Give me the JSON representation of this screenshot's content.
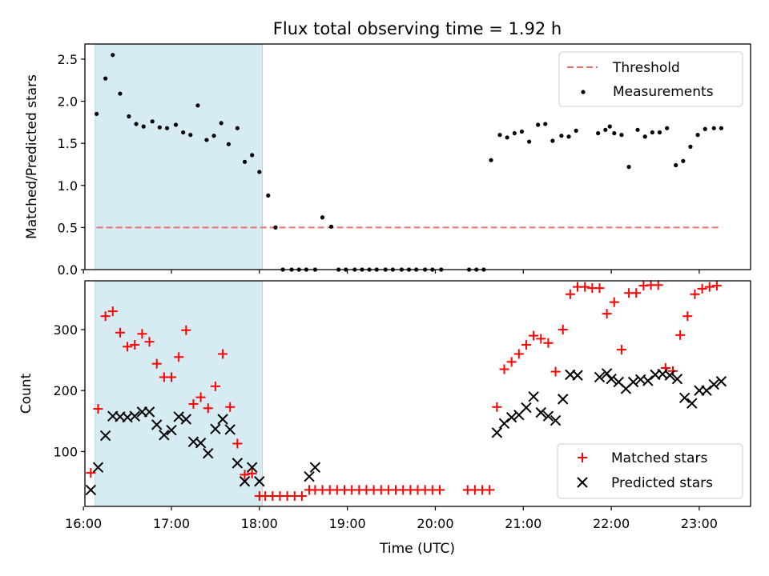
{
  "figure": {
    "title": "Flux total observing time = 1.92 h",
    "shaded_interval": [
      "16:08",
      "18:02"
    ],
    "shade_color": "#add8e6"
  },
  "chart_data": [
    {
      "type": "scatter",
      "ylabel": "Matched/Predicted stars",
      "ylim": [
        0,
        2.68
      ],
      "yticks": [
        "0.0",
        "0.5",
        "1.0",
        "1.5",
        "2.0",
        "2.5"
      ],
      "xlim": [
        "16:01",
        "23:35"
      ],
      "threshold": 0.5,
      "legend": {
        "position": "top-right",
        "threshold_label": "Threshold",
        "measurements_label": "Measurements"
      },
      "threshold_color": "#f07070",
      "measurement_color": "#000000",
      "series": [
        {
          "name": "Measurements",
          "x": [
            "16:09",
            "16:15",
            "16:20",
            "16:25",
            "16:31",
            "16:36",
            "16:41",
            "16:47",
            "16:52",
            "16:57",
            "17:03",
            "17:08",
            "17:13",
            "17:18",
            "17:24",
            "17:29",
            "17:34",
            "17:39",
            "17:45",
            "17:50",
            "17:55",
            "18:00",
            "18:06",
            "18:11",
            "18:16",
            "18:22",
            "18:27",
            "18:32",
            "18:38",
            "18:43",
            "18:49",
            "18:54",
            "18:59",
            "19:05",
            "19:10",
            "19:15",
            "19:20",
            "19:26",
            "19:31",
            "19:37",
            "19:42",
            "19:47",
            "19:53",
            "19:58",
            "20:04",
            "20:23",
            "20:28",
            "20:33",
            "20:38",
            "20:44",
            "20:49",
            "20:54",
            "20:59",
            "21:04",
            "21:10",
            "21:15",
            "21:20",
            "21:26",
            "21:31",
            "21:36",
            "21:51",
            "21:56",
            "21:59",
            "22:02",
            "22:07",
            "22:12",
            "22:18",
            "22:23",
            "22:28",
            "22:33",
            "22:38",
            "22:44",
            "22:49",
            "22:54",
            "22:59",
            "23:04",
            "23:10",
            "23:15"
          ],
          "y": [
            1.85,
            2.27,
            2.55,
            2.09,
            1.82,
            1.73,
            1.7,
            1.76,
            1.69,
            1.68,
            1.72,
            1.63,
            1.6,
            1.95,
            1.54,
            1.59,
            1.74,
            1.49,
            1.68,
            1.28,
            1.36,
            1.16,
            0.88,
            0.5,
            0,
            0,
            0,
            0,
            0,
            0.62,
            0.51,
            0,
            0,
            0,
            0,
            0,
            0,
            0,
            0,
            0,
            0,
            0,
            0,
            0,
            0,
            0,
            0,
            0,
            1.3,
            1.6,
            1.57,
            1.62,
            1.64,
            1.52,
            1.72,
            1.73,
            1.53,
            1.59,
            1.58,
            1.65,
            1.62,
            1.66,
            1.7,
            1.62,
            1.6,
            1.22,
            1.66,
            1.58,
            1.63,
            1.63,
            1.68,
            1.24,
            1.29,
            1.46,
            1.6,
            1.67,
            1.68,
            1.68
          ]
        }
      ]
    },
    {
      "type": "scatter",
      "ylabel": "Count",
      "xlabel": "Time (UTC)",
      "ylim": [
        10,
        380
      ],
      "yticks": [
        "100",
        "200",
        "300"
      ],
      "xticks": [
        "16:00",
        "17:00",
        "18:00",
        "19:00",
        "20:00",
        "21:00",
        "22:00",
        "23:00"
      ],
      "xlim": [
        "16:01",
        "23:35"
      ],
      "legend": {
        "position": "bottom-right"
      },
      "series": [
        {
          "name": "Matched stars",
          "color": "#ff0000",
          "marker": "+",
          "x": [
            "16:05",
            "16:10",
            "16:15",
            "16:20",
            "16:25",
            "16:30",
            "16:35",
            "16:40",
            "16:45",
            "16:50",
            "16:55",
            "17:00",
            "17:05",
            "17:10",
            "17:15",
            "17:20",
            "17:25",
            "17:30",
            "17:35",
            "17:40",
            "17:45",
            "17:50",
            "17:55",
            "18:00",
            "18:04",
            "18:09",
            "18:14",
            "18:19",
            "18:24",
            "18:29",
            "18:34",
            "18:38",
            "18:43",
            "18:48",
            "18:53",
            "18:58",
            "19:03",
            "19:08",
            "19:13",
            "19:18",
            "19:23",
            "19:28",
            "19:33",
            "19:38",
            "19:43",
            "19:48",
            "19:53",
            "19:58",
            "20:03",
            "20:22",
            "20:27",
            "20:32",
            "20:37",
            "20:42",
            "20:47",
            "20:52",
            "20:57",
            "21:02",
            "21:07",
            "21:12",
            "21:17",
            "21:22",
            "21:27",
            "21:32",
            "21:37",
            "21:42",
            "21:47",
            "21:52",
            "21:57",
            "22:02",
            "22:07",
            "22:12",
            "22:17",
            "22:22",
            "22:27",
            "22:32",
            "22:37",
            "22:42",
            "22:47",
            "22:52",
            "22:57",
            "23:02",
            "23:07",
            "23:12"
          ],
          "y": [
            65,
            170,
            322,
            330,
            295,
            272,
            275,
            293,
            280,
            244,
            222,
            222,
            255,
            299,
            178,
            189,
            171,
            207,
            260,
            173,
            113,
            62,
            64,
            27,
            27,
            27,
            27,
            27,
            27,
            27,
            37,
            37,
            37,
            37,
            37,
            37,
            37,
            37,
            37,
            37,
            37,
            37,
            37,
            37,
            37,
            37,
            37,
            37,
            37,
            37,
            37,
            37,
            37,
            173,
            235,
            247,
            260,
            275,
            290,
            285,
            278,
            231,
            300,
            358,
            370,
            370,
            368,
            368,
            326,
            345,
            267,
            360,
            360,
            372,
            373,
            373,
            237,
            232,
            291,
            322,
            358,
            367,
            370,
            372
          ]
        },
        {
          "name": "Predicted stars",
          "color": "#000000",
          "marker": "x",
          "x": [
            "16:05",
            "16:10",
            "16:15",
            "16:20",
            "16:25",
            "16:30",
            "16:35",
            "16:40",
            "16:45",
            "16:50",
            "16:55",
            "17:00",
            "17:05",
            "17:10",
            "17:15",
            "17:20",
            "17:25",
            "17:30",
            "17:35",
            "17:40",
            "17:45",
            "17:50",
            "17:55",
            "18:00",
            "18:34",
            "18:38",
            "20:42",
            "20:47",
            "20:52",
            "20:57",
            "21:02",
            "21:07",
            "21:12",
            "21:17",
            "21:22",
            "21:27",
            "21:32",
            "21:37",
            "21:52",
            "21:57",
            "22:00",
            "22:05",
            "22:10",
            "22:15",
            "22:20",
            "22:25",
            "22:30",
            "22:35",
            "22:40",
            "22:45",
            "22:50",
            "22:55",
            "23:00",
            "23:05",
            "23:10",
            "23:15"
          ],
          "y": [
            37,
            74,
            126,
            158,
            157,
            156,
            158,
            165,
            165,
            144,
            127,
            135,
            157,
            153,
            116,
            114,
            97,
            137,
            153,
            136,
            81,
            51,
            74,
            51,
            59,
            74,
            131,
            146,
            156,
            160,
            172,
            190,
            164,
            158,
            151,
            186,
            226,
            225,
            222,
            228,
            219,
            214,
            203,
            214,
            218,
            216,
            226,
            227,
            225,
            219,
            188,
            179,
            200,
            200,
            210,
            215
          ]
        }
      ]
    }
  ]
}
